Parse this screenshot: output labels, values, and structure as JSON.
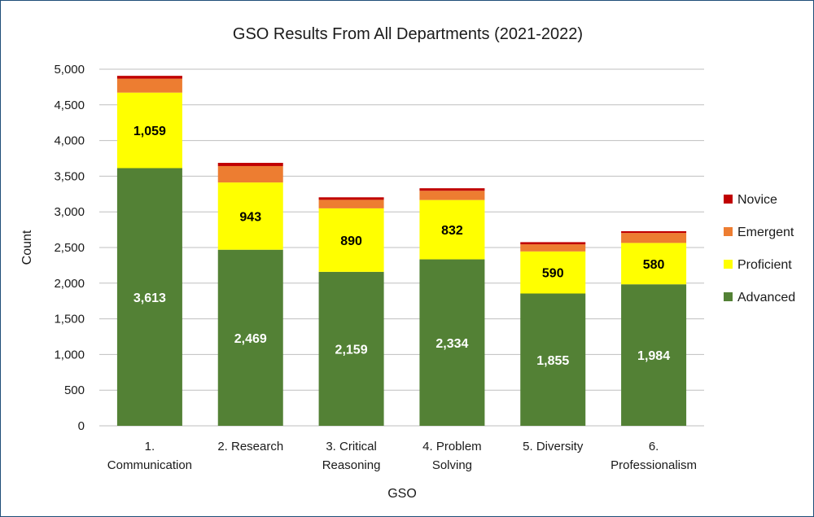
{
  "chart_data": {
    "type": "bar",
    "stacked": true,
    "title": "GSO Results From All Departments (2021-2022)",
    "xlabel": "GSO",
    "ylabel": "Count",
    "ylim": [
      0,
      5000
    ],
    "yticks": [
      0,
      500,
      1000,
      1500,
      2000,
      2500,
      3000,
      3500,
      4000,
      4500,
      5000
    ],
    "ytick_labels": [
      "0",
      "500",
      "1,000",
      "1,500",
      "2,000",
      "2,500",
      "3,000",
      "3,500",
      "4,000",
      "4,500",
      "5,000"
    ],
    "grid": true,
    "legend_position": "right",
    "categories": [
      "1. Communication",
      "2. Research",
      "3. Critical Reasoning",
      "4. Problem Solving",
      "5. Diversity",
      "6. Professionalism"
    ],
    "category_label_lines": [
      [
        "1.",
        "Communication"
      ],
      [
        "2. Research"
      ],
      [
        "3. Critical",
        "Reasoning"
      ],
      [
        "4. Problem",
        "Solving"
      ],
      [
        "5. Diversity"
      ],
      [
        "6.",
        "Professionalism"
      ]
    ],
    "series": [
      {
        "name": "Advanced",
        "color": "#538135",
        "values": [
          3613,
          2469,
          2159,
          2334,
          1855,
          1984
        ],
        "labels": [
          "3,613",
          "2,469",
          "2,159",
          "2,334",
          "1,855",
          "1,984"
        ],
        "label_style": "light"
      },
      {
        "name": "Proficient",
        "color": "#ffff00",
        "values": [
          1059,
          943,
          890,
          832,
          590,
          580
        ],
        "labels": [
          "1,059",
          "943",
          "890",
          "832",
          "590",
          "580"
        ],
        "label_style": "dark"
      },
      {
        "name": "Emergent",
        "color": "#ed7d31",
        "values": [
          195,
          230,
          120,
          130,
          100,
          140
        ],
        "labels": [],
        "label_style": "none"
      },
      {
        "name": "Novice",
        "color": "#c00000",
        "values": [
          40,
          45,
          35,
          35,
          30,
          25
        ],
        "labels": [],
        "label_style": "none"
      }
    ],
    "legend_order": [
      "Novice",
      "Emergent",
      "Proficient",
      "Advanced"
    ]
  },
  "colors": {
    "border": "#1f4e79",
    "gridline": "#bfbfbf",
    "axis": "#bfbfbf"
  }
}
